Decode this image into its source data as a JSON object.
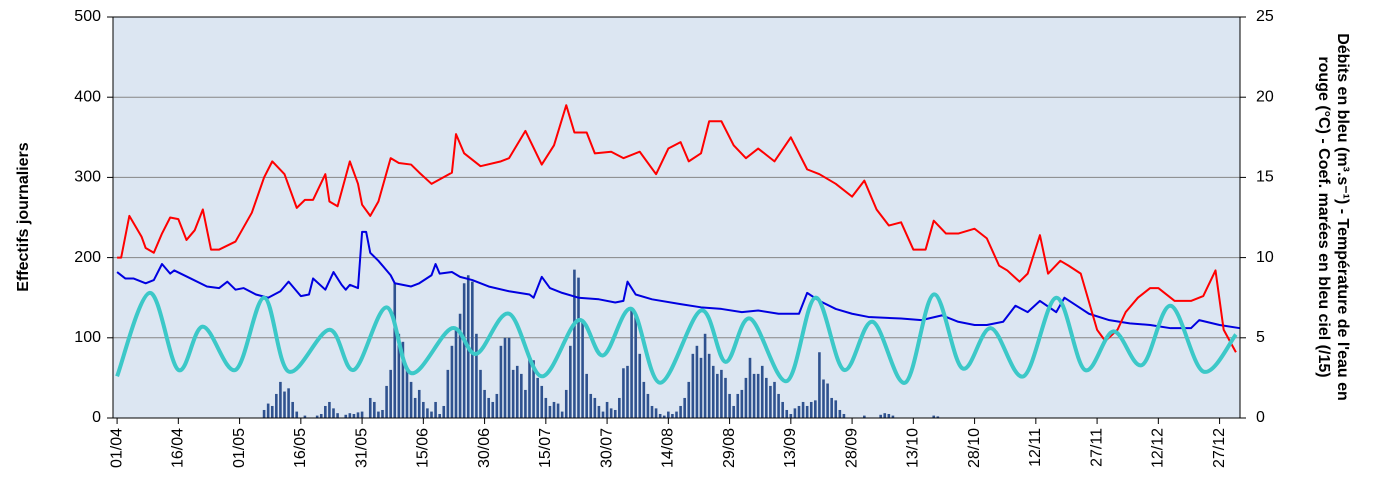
{
  "chart_data": {
    "type": "combo",
    "ylabel": "Effectifs journaliers",
    "y2label": "Débits en bleu (m³.s⁻¹) - Température de l'eau en rouge (°C) - Coef. marées en bleu ciel (/15)",
    "xlim": [
      -1,
      275
    ],
    "xticks": [
      {
        "value": 0,
        "label": "01/04"
      },
      {
        "value": 15,
        "label": "16/04"
      },
      {
        "value": 30,
        "label": "01/05"
      },
      {
        "value": 45,
        "label": "16/05"
      },
      {
        "value": 60,
        "label": "31/05"
      },
      {
        "value": 75,
        "label": "15/06"
      },
      {
        "value": 90,
        "label": "30/06"
      },
      {
        "value": 105,
        "label": "15/07"
      },
      {
        "value": 120,
        "label": "30/07"
      },
      {
        "value": 135,
        "label": "14/08"
      },
      {
        "value": 150,
        "label": "29/08"
      },
      {
        "value": 165,
        "label": "13/09"
      },
      {
        "value": 180,
        "label": "28/09"
      },
      {
        "value": 195,
        "label": "13/10"
      },
      {
        "value": 210,
        "label": "28/10"
      },
      {
        "value": 225,
        "label": "12/11"
      },
      {
        "value": 240,
        "label": "27/11"
      },
      {
        "value": 255,
        "label": "12/12"
      },
      {
        "value": 270,
        "label": "27/12"
      }
    ],
    "ylim": [
      0,
      500
    ],
    "yticks": [
      0,
      100,
      200,
      300,
      400,
      500
    ],
    "y2lim": [
      0,
      25
    ],
    "y2ticks": [
      0,
      5,
      10,
      15,
      20,
      25
    ],
    "grid": true,
    "background": "#dce6f2",
    "series": [
      {
        "type": "bar",
        "color": "#2f528f",
        "x": [
          36,
          37,
          38,
          39,
          40,
          41,
          42,
          43,
          44,
          46,
          49,
          50,
          51,
          52,
          53,
          54,
          56,
          57,
          58,
          59,
          60,
          62,
          63,
          64,
          65,
          66,
          67,
          68,
          69,
          70,
          71,
          72,
          73,
          74,
          75,
          76,
          77,
          78,
          79,
          80,
          81,
          82,
          83,
          84,
          85,
          86,
          87,
          88,
          89,
          90,
          91,
          92,
          93,
          94,
          95,
          96,
          97,
          98,
          99,
          100,
          101,
          102,
          103,
          104,
          105,
          106,
          107,
          108,
          109,
          110,
          111,
          112,
          113,
          114,
          115,
          116,
          117,
          118,
          119,
          120,
          121,
          122,
          123,
          124,
          125,
          126,
          127,
          128,
          129,
          130,
          131,
          132,
          133,
          134,
          135,
          136,
          137,
          138,
          139,
          140,
          141,
          142,
          143,
          144,
          145,
          146,
          147,
          148,
          149,
          150,
          151,
          152,
          153,
          154,
          155,
          156,
          157,
          158,
          159,
          160,
          161,
          162,
          163,
          164,
          165,
          166,
          167,
          168,
          169,
          170,
          171,
          172,
          173,
          174,
          175,
          176,
          177,
          178,
          183,
          187,
          188,
          189,
          190,
          200,
          201
        ],
        "values": [
          10,
          18,
          15,
          30,
          45,
          33,
          37,
          20,
          8,
          3,
          3,
          5,
          15,
          20,
          12,
          6,
          4,
          6,
          5,
          7,
          8,
          25,
          20,
          8,
          10,
          40,
          60,
          168,
          105,
          95,
          60,
          45,
          25,
          35,
          20,
          12,
          8,
          20,
          5,
          15,
          60,
          90,
          110,
          130,
          168,
          178,
          170,
          105,
          60,
          35,
          25,
          20,
          30,
          90,
          100,
          100,
          60,
          65,
          55,
          35,
          75,
          72,
          50,
          40,
          25,
          15,
          20,
          18,
          8,
          35,
          90,
          185,
          175,
          120,
          55,
          30,
          25,
          15,
          8,
          20,
          12,
          10,
          25,
          62,
          65,
          135,
          130,
          80,
          45,
          30,
          15,
          12,
          5,
          3,
          8,
          5,
          8,
          15,
          25,
          45,
          80,
          90,
          75,
          105,
          80,
          65,
          55,
          60,
          50,
          30,
          15,
          30,
          35,
          50,
          75,
          55,
          55,
          65,
          50,
          40,
          45,
          30,
          20,
          10,
          5,
          12,
          15,
          20,
          15,
          20,
          22,
          82,
          48,
          43,
          25,
          22,
          10,
          5,
          3,
          4,
          6,
          5,
          3,
          3,
          2
        ]
      },
      {
        "type": "line",
        "axis": "y2",
        "color": "#0000e0",
        "width": 2,
        "x": [
          0,
          2,
          4,
          7,
          9,
          11,
          13,
          14,
          18,
          22,
          25,
          27,
          29,
          31,
          34,
          37,
          40,
          42,
          45,
          47,
          48,
          51,
          53,
          55,
          56,
          57,
          59,
          60,
          61,
          62,
          64,
          67,
          68,
          72,
          74,
          77,
          78,
          79,
          82,
          84,
          87,
          91,
          96,
          101,
          102,
          104,
          106,
          109,
          113,
          118,
          122,
          124,
          125,
          127,
          131,
          138,
          143,
          148,
          153,
          157,
          162,
          167,
          169,
          172,
          176,
          180,
          184,
          192,
          197,
          202,
          206,
          210,
          213,
          217,
          220,
          223,
          226,
          230,
          232,
          235,
          238,
          243,
          248,
          253,
          258,
          263,
          265,
          270,
          275
        ],
        "values": [
          9.1,
          8.7,
          8.7,
          8.4,
          8.6,
          9.6,
          9.0,
          9.2,
          8.7,
          8.2,
          8.1,
          8.5,
          8.0,
          8.1,
          7.7,
          7.5,
          7.9,
          8.5,
          7.6,
          7.7,
          8.7,
          8.0,
          9.1,
          8.3,
          8.0,
          8.3,
          8.1,
          11.6,
          11.6,
          10.3,
          9.8,
          8.9,
          8.4,
          8.2,
          8.4,
          8.9,
          9.6,
          9.0,
          9.1,
          8.8,
          8.6,
          8.2,
          7.9,
          7.7,
          7.5,
          8.8,
          8.1,
          7.8,
          7.5,
          7.4,
          7.2,
          7.3,
          8.5,
          7.7,
          7.4,
          7.1,
          6.9,
          6.8,
          6.6,
          6.7,
          6.5,
          6.5,
          7.8,
          7.3,
          6.8,
          6.5,
          6.3,
          6.2,
          6.1,
          6.4,
          6.0,
          5.8,
          5.8,
          6.0,
          7.0,
          6.6,
          7.3,
          6.6,
          7.5,
          7.0,
          6.5,
          6.1,
          5.9,
          5.8,
          5.6,
          5.6,
          6.1,
          5.8,
          5.6
        ]
      },
      {
        "type": "line",
        "axis": "y2",
        "color": "#ff0000",
        "width": 2,
        "x": [
          0,
          1,
          3,
          6,
          7,
          9,
          11,
          13,
          15,
          17,
          19,
          21,
          23,
          25,
          29,
          33,
          36,
          38,
          41,
          44,
          46,
          48,
          51,
          52,
          54,
          57,
          59,
          60,
          62,
          64,
          67,
          69,
          72,
          74,
          77,
          82,
          83,
          85,
          89,
          94,
          96,
          100,
          104,
          107,
          110,
          112,
          115,
          117,
          121,
          124,
          128,
          132,
          135,
          138,
          140,
          143,
          145,
          148,
          151,
          154,
          157,
          161,
          165,
          169,
          172,
          176,
          180,
          183,
          186,
          189,
          192,
          195,
          198,
          200,
          203,
          206,
          210,
          213,
          216,
          218,
          221,
          223,
          226,
          228,
          231,
          233,
          236,
          240,
          242,
          245,
          247,
          250,
          253,
          255,
          259,
          263,
          266,
          269,
          271,
          274
        ],
        "values": [
          10.0,
          10.0,
          12.6,
          11.3,
          10.6,
          10.3,
          11.5,
          12.5,
          12.4,
          11.1,
          11.7,
          13.0,
          10.5,
          10.5,
          11.0,
          12.8,
          15.0,
          16.0,
          15.2,
          13.1,
          13.6,
          13.6,
          15.2,
          13.5,
          13.2,
          16.0,
          14.6,
          13.3,
          12.6,
          13.5,
          16.2,
          15.9,
          15.8,
          15.3,
          14.6,
          15.3,
          17.7,
          16.5,
          15.7,
          16.0,
          16.2,
          17.9,
          15.8,
          17.0,
          19.5,
          17.8,
          17.8,
          16.5,
          16.6,
          16.2,
          16.6,
          15.2,
          16.8,
          17.2,
          16.0,
          16.5,
          18.5,
          18.5,
          17.0,
          16.2,
          16.8,
          16.0,
          17.5,
          15.5,
          15.2,
          14.6,
          13.8,
          14.8,
          13.0,
          12.0,
          12.2,
          10.5,
          10.5,
          12.3,
          11.5,
          11.5,
          11.8,
          11.2,
          9.5,
          9.2,
          8.5,
          9.0,
          11.4,
          9.0,
          9.8,
          9.5,
          9.0,
          5.5,
          4.8,
          5.5,
          6.6,
          7.5,
          8.1,
          8.1,
          7.3,
          7.3,
          7.6,
          9.2,
          5.5,
          4.1
        ]
      },
      {
        "type": "smooth-line",
        "axis": "y2",
        "color": "#3cc8c8",
        "width": 4,
        "x": [
          0,
          8,
          15,
          21,
          29,
          36,
          42,
          52,
          58,
          66,
          72,
          82,
          88,
          96,
          104,
          113,
          119,
          126,
          133,
          143,
          149,
          155,
          164,
          171,
          178,
          185,
          193,
          200,
          207,
          214,
          222,
          230,
          237,
          244,
          251,
          258,
          266,
          274
        ],
        "values": [
          2.6,
          7.8,
          3.0,
          5.7,
          3.0,
          7.5,
          2.9,
          5.5,
          3.0,
          6.9,
          2.8,
          5.6,
          4.0,
          6.5,
          2.6,
          6.1,
          3.9,
          6.8,
          2.2,
          6.7,
          3.5,
          6.2,
          2.3,
          7.5,
          3.0,
          6.0,
          2.2,
          7.7,
          3.1,
          5.6,
          2.6,
          7.5,
          3.0,
          5.4,
          3.3,
          7.0,
          2.9,
          5.2
        ]
      }
    ]
  }
}
